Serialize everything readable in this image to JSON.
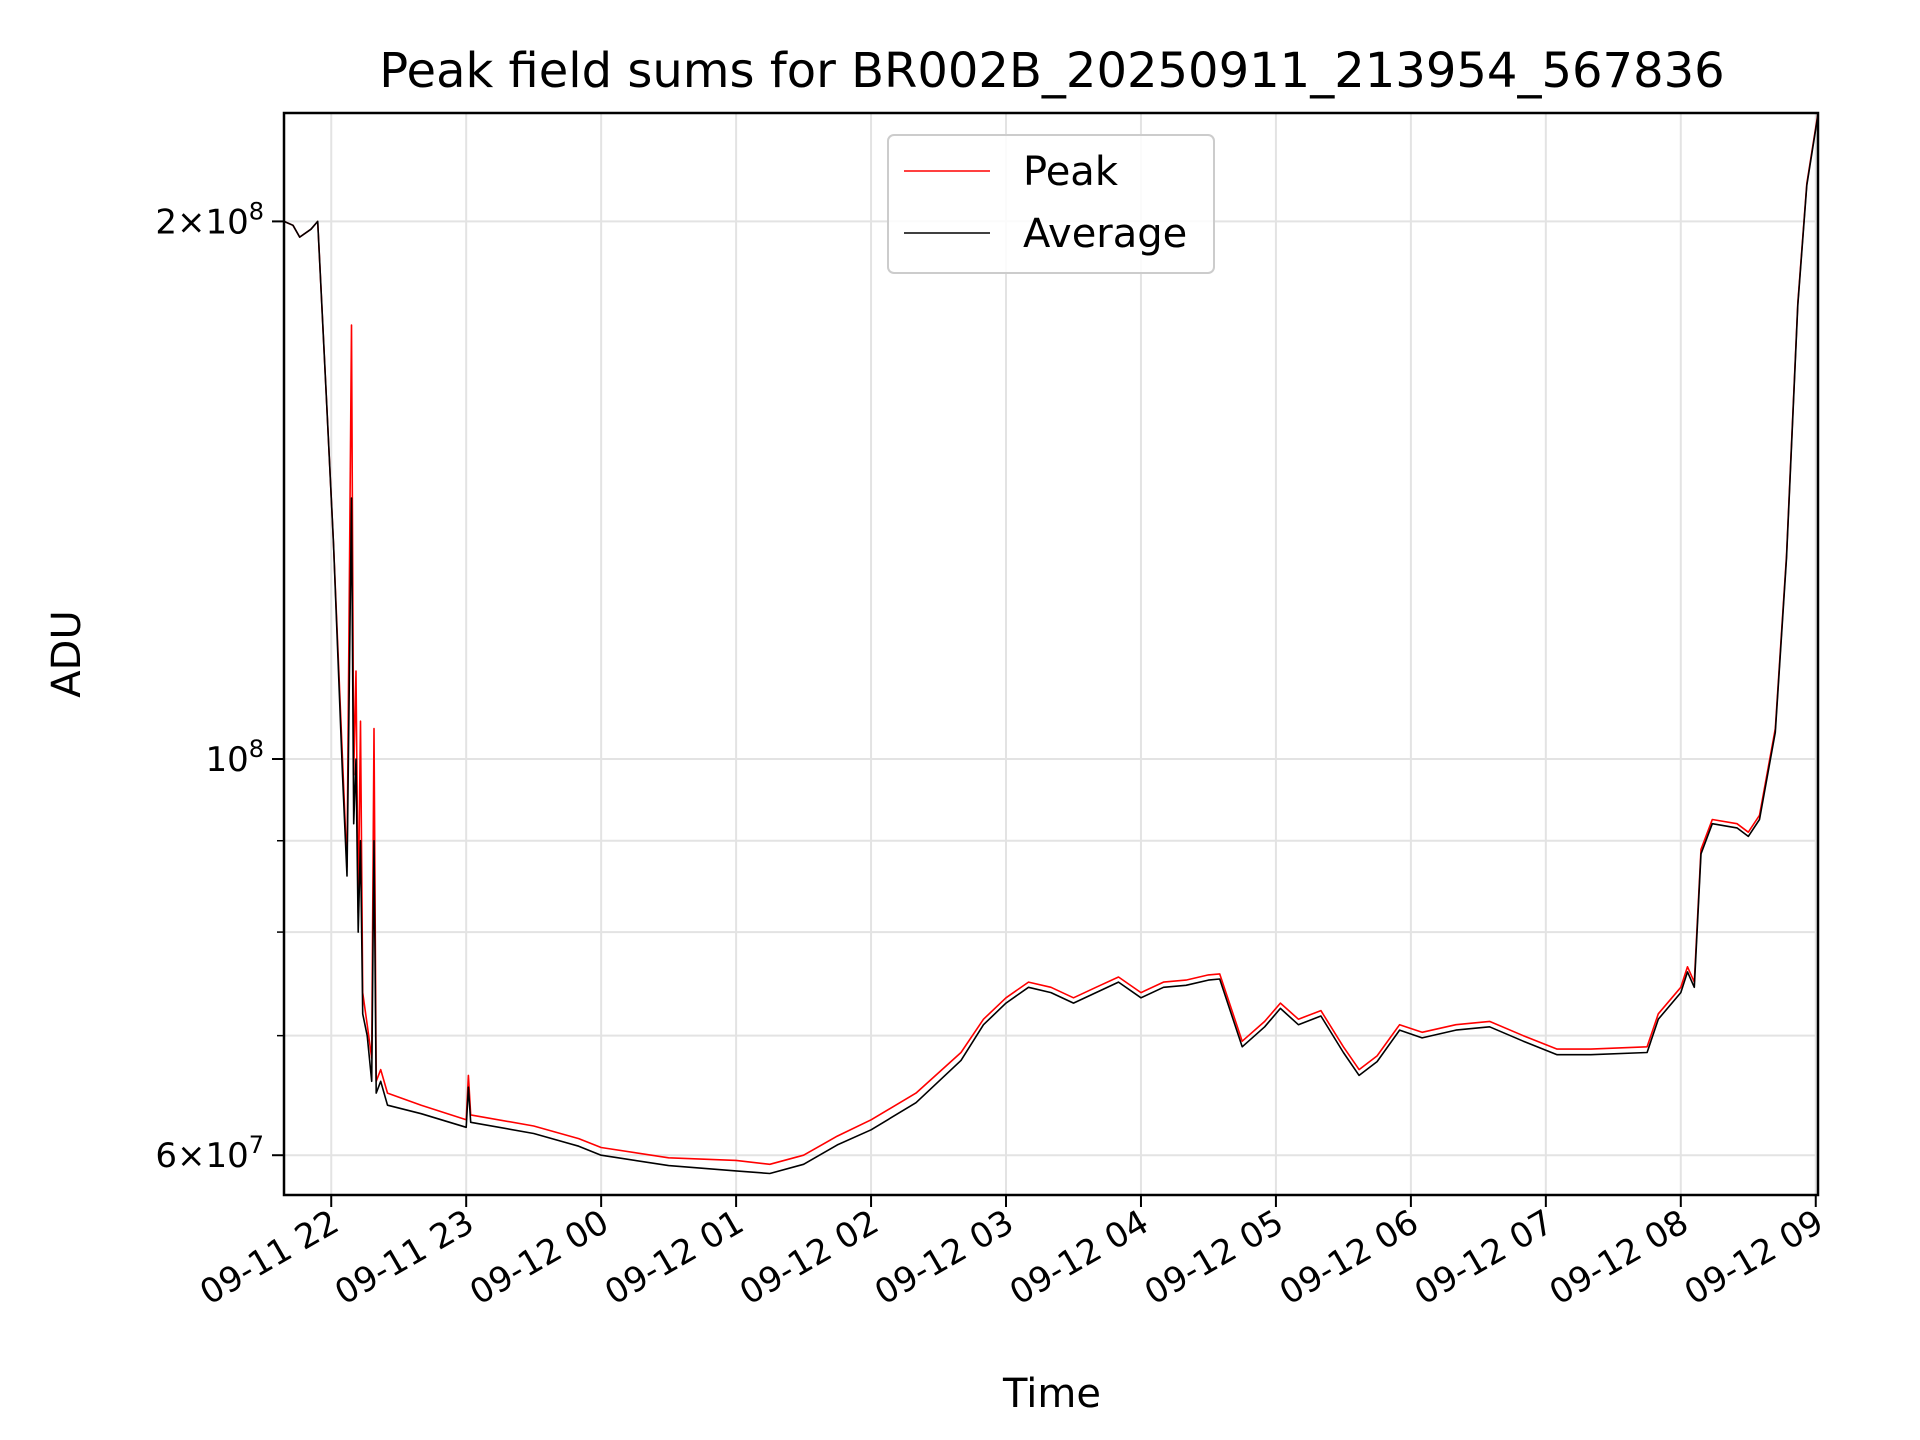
{
  "chart_data": {
    "type": "line",
    "title": "Peak field sums for BR002B_20250911_213954_567836",
    "xlabel": "Time",
    "ylabel": "ADU",
    "yscale": "log",
    "ylim": [
      57000000,
      230000000
    ],
    "xlim": [
      "2025-09-11 21:39",
      "2025-09-12 09:01"
    ],
    "grid": true,
    "legend_position": "upper center",
    "x_ticks": [
      {
        "t": "2025-09-11 22:00",
        "label": "09-11 22"
      },
      {
        "t": "2025-09-11 23:00",
        "label": "09-11 23"
      },
      {
        "t": "2025-09-12 00:00",
        "label": "09-12 00"
      },
      {
        "t": "2025-09-12 01:00",
        "label": "09-12 01"
      },
      {
        "t": "2025-09-12 02:00",
        "label": "09-12 02"
      },
      {
        "t": "2025-09-12 03:00",
        "label": "09-12 03"
      },
      {
        "t": "2025-09-12 04:00",
        "label": "09-12 04"
      },
      {
        "t": "2025-09-12 05:00",
        "label": "09-12 05"
      },
      {
        "t": "2025-09-12 06:00",
        "label": "09-12 06"
      },
      {
        "t": "2025-09-12 07:00",
        "label": "09-12 07"
      },
      {
        "t": "2025-09-12 08:00",
        "label": "09-12 08"
      },
      {
        "t": "2025-09-12 09:00",
        "label": "09-12 09"
      }
    ],
    "y_ticks": [
      {
        "value": 60000000,
        "mant": "6",
        "exp": "7"
      },
      {
        "value": 100000000,
        "mant": "",
        "exp": "8"
      },
      {
        "value": 200000000,
        "mant": "2",
        "exp": "8"
      }
    ],
    "y_minor_ticks": [
      70000000,
      80000000,
      90000000
    ],
    "series": [
      {
        "name": "Peak",
        "color": "#ff0000",
        "points": [
          [
            "2025-09-11 21:39",
            200000000
          ],
          [
            "2025-09-11 21:43",
            199000000
          ],
          [
            "2025-09-11 21:46",
            196000000
          ],
          [
            "2025-09-11 21:51",
            198000000
          ],
          [
            "2025-09-11 21:54",
            200000000
          ],
          [
            "2025-09-11 21:58",
            158000000
          ],
          [
            "2025-09-11 22:01",
            132000000
          ],
          [
            "2025-09-11 22:05",
            100000000
          ],
          [
            "2025-09-11 22:07",
            87000000
          ],
          [
            "2025-09-11 22:09",
            175000000
          ],
          [
            "2025-09-11 22:10",
            98000000
          ],
          [
            "2025-09-11 22:11",
            112000000
          ],
          [
            "2025-09-11 22:12",
            82000000
          ],
          [
            "2025-09-11 22:13",
            105000000
          ],
          [
            "2025-09-11 22:14",
            74000000
          ],
          [
            "2025-09-11 22:16",
            71000000
          ],
          [
            "2025-09-11 22:18",
            68000000
          ],
          [
            "2025-09-11 22:19",
            104000000
          ],
          [
            "2025-09-11 22:20",
            66000000
          ],
          [
            "2025-09-11 22:22",
            67000000
          ],
          [
            "2025-09-11 22:25",
            65000000
          ],
          [
            "2025-09-11 22:40",
            64000000
          ],
          [
            "2025-09-11 23:00",
            62800000
          ],
          [
            "2025-09-11 23:01",
            66500000
          ],
          [
            "2025-09-11 23:02",
            63200000
          ],
          [
            "2025-09-11 23:30",
            62300000
          ],
          [
            "2025-09-11 23:50",
            61300000
          ],
          [
            "2025-09-12 00:00",
            60600000
          ],
          [
            "2025-09-12 00:30",
            59800000
          ],
          [
            "2025-09-12 01:00",
            59600000
          ],
          [
            "2025-09-12 01:15",
            59300000
          ],
          [
            "2025-09-12 01:30",
            60000000
          ],
          [
            "2025-09-12 01:45",
            61500000
          ],
          [
            "2025-09-12 02:00",
            62800000
          ],
          [
            "2025-09-12 02:20",
            65000000
          ],
          [
            "2025-09-12 02:40",
            68500000
          ],
          [
            "2025-09-12 02:50",
            71500000
          ],
          [
            "2025-09-12 03:00",
            73500000
          ],
          [
            "2025-09-12 03:10",
            75000000
          ],
          [
            "2025-09-12 03:20",
            74500000
          ],
          [
            "2025-09-12 03:30",
            73500000
          ],
          [
            "2025-09-12 03:40",
            74500000
          ],
          [
            "2025-09-12 03:50",
            75500000
          ],
          [
            "2025-09-12 04:00",
            74000000
          ],
          [
            "2025-09-12 04:10",
            75000000
          ],
          [
            "2025-09-12 04:20",
            75200000
          ],
          [
            "2025-09-12 04:30",
            75700000
          ],
          [
            "2025-09-12 04:35",
            75800000
          ],
          [
            "2025-09-12 04:45",
            69500000
          ],
          [
            "2025-09-12 04:55",
            71300000
          ],
          [
            "2025-09-12 05:02",
            73000000
          ],
          [
            "2025-09-12 05:10",
            71500000
          ],
          [
            "2025-09-12 05:20",
            72300000
          ],
          [
            "2025-09-12 05:30",
            69000000
          ],
          [
            "2025-09-12 05:37",
            67000000
          ],
          [
            "2025-09-12 05:45",
            68200000
          ],
          [
            "2025-09-12 05:55",
            71000000
          ],
          [
            "2025-09-12 06:05",
            70300000
          ],
          [
            "2025-09-12 06:20",
            71000000
          ],
          [
            "2025-09-12 06:35",
            71300000
          ],
          [
            "2025-09-12 06:50",
            70000000
          ],
          [
            "2025-09-12 07:05",
            68800000
          ],
          [
            "2025-09-12 07:20",
            68800000
          ],
          [
            "2025-09-12 07:45",
            69000000
          ],
          [
            "2025-09-12 07:50",
            72000000
          ],
          [
            "2025-09-12 08:00",
            74500000
          ],
          [
            "2025-09-12 08:03",
            76500000
          ],
          [
            "2025-09-12 08:06",
            75000000
          ],
          [
            "2025-09-12 08:09",
            89000000
          ],
          [
            "2025-09-12 08:14",
            92500000
          ],
          [
            "2025-09-12 08:25",
            92000000
          ],
          [
            "2025-09-12 08:30",
            91000000
          ],
          [
            "2025-09-12 08:35",
            93000000
          ],
          [
            "2025-09-12 08:42",
            104000000
          ],
          [
            "2025-09-12 08:47",
            130000000
          ],
          [
            "2025-09-12 08:52",
            180000000
          ],
          [
            "2025-09-12 08:56",
            210000000
          ],
          [
            "2025-09-12 09:01",
            230000000
          ]
        ]
      },
      {
        "name": "Average",
        "color": "#000000",
        "points": [
          [
            "2025-09-11 21:39",
            200000000
          ],
          [
            "2025-09-11 21:43",
            199000000
          ],
          [
            "2025-09-11 21:46",
            196000000
          ],
          [
            "2025-09-11 21:51",
            198000000
          ],
          [
            "2025-09-11 21:54",
            200000000
          ],
          [
            "2025-09-11 21:58",
            158000000
          ],
          [
            "2025-09-11 22:01",
            132000000
          ],
          [
            "2025-09-11 22:05",
            98000000
          ],
          [
            "2025-09-11 22:07",
            86000000
          ],
          [
            "2025-09-11 22:09",
            140000000
          ],
          [
            "2025-09-11 22:10",
            92000000
          ],
          [
            "2025-09-11 22:11",
            100000000
          ],
          [
            "2025-09-11 22:12",
            80000000
          ],
          [
            "2025-09-11 22:13",
            90000000
          ],
          [
            "2025-09-11 22:14",
            72000000
          ],
          [
            "2025-09-11 22:16",
            70000000
          ],
          [
            "2025-09-11 22:18",
            66000000
          ],
          [
            "2025-09-11 22:19",
            90000000
          ],
          [
            "2025-09-11 22:20",
            65000000
          ],
          [
            "2025-09-11 22:22",
            66000000
          ],
          [
            "2025-09-11 22:25",
            64000000
          ],
          [
            "2025-09-11 22:40",
            63300000
          ],
          [
            "2025-09-11 23:00",
            62200000
          ],
          [
            "2025-09-11 23:01",
            65500000
          ],
          [
            "2025-09-11 23:02",
            62600000
          ],
          [
            "2025-09-11 23:30",
            61700000
          ],
          [
            "2025-09-11 23:50",
            60700000
          ],
          [
            "2025-09-12 00:00",
            60000000
          ],
          [
            "2025-09-12 00:30",
            59200000
          ],
          [
            "2025-09-12 01:00",
            58800000
          ],
          [
            "2025-09-12 01:15",
            58600000
          ],
          [
            "2025-09-12 01:30",
            59300000
          ],
          [
            "2025-09-12 01:45",
            60800000
          ],
          [
            "2025-09-12 02:00",
            62000000
          ],
          [
            "2025-09-12 02:20",
            64200000
          ],
          [
            "2025-09-12 02:40",
            67800000
          ],
          [
            "2025-09-12 02:50",
            71000000
          ],
          [
            "2025-09-12 03:00",
            73000000
          ],
          [
            "2025-09-12 03:10",
            74500000
          ],
          [
            "2025-09-12 03:20",
            74000000
          ],
          [
            "2025-09-12 03:30",
            73000000
          ],
          [
            "2025-09-12 03:40",
            74000000
          ],
          [
            "2025-09-12 03:50",
            75000000
          ],
          [
            "2025-09-12 04:00",
            73500000
          ],
          [
            "2025-09-12 04:10",
            74500000
          ],
          [
            "2025-09-12 04:20",
            74700000
          ],
          [
            "2025-09-12 04:30",
            75200000
          ],
          [
            "2025-09-12 04:35",
            75300000
          ],
          [
            "2025-09-12 04:45",
            69000000
          ],
          [
            "2025-09-12 04:55",
            70800000
          ],
          [
            "2025-09-12 05:02",
            72500000
          ],
          [
            "2025-09-12 05:10",
            71000000
          ],
          [
            "2025-09-12 05:20",
            71800000
          ],
          [
            "2025-09-12 05:30",
            68500000
          ],
          [
            "2025-09-12 05:37",
            66500000
          ],
          [
            "2025-09-12 05:45",
            67700000
          ],
          [
            "2025-09-12 05:55",
            70500000
          ],
          [
            "2025-09-12 06:05",
            69800000
          ],
          [
            "2025-09-12 06:20",
            70500000
          ],
          [
            "2025-09-12 06:35",
            70800000
          ],
          [
            "2025-09-12 06:50",
            69500000
          ],
          [
            "2025-09-12 07:05",
            68300000
          ],
          [
            "2025-09-12 07:20",
            68300000
          ],
          [
            "2025-09-12 07:45",
            68500000
          ],
          [
            "2025-09-12 07:50",
            71500000
          ],
          [
            "2025-09-12 08:00",
            74000000
          ],
          [
            "2025-09-12 08:03",
            76000000
          ],
          [
            "2025-09-12 08:06",
            74500000
          ],
          [
            "2025-09-12 08:09",
            88500000
          ],
          [
            "2025-09-12 08:14",
            92000000
          ],
          [
            "2025-09-12 08:25",
            91500000
          ],
          [
            "2025-09-12 08:30",
            90500000
          ],
          [
            "2025-09-12 08:35",
            92500000
          ],
          [
            "2025-09-12 08:42",
            103500000
          ],
          [
            "2025-09-12 08:47",
            129500000
          ],
          [
            "2025-09-12 08:52",
            179500000
          ],
          [
            "2025-09-12 08:56",
            209500000
          ],
          [
            "2025-09-12 09:01",
            229500000
          ]
        ]
      }
    ]
  }
}
